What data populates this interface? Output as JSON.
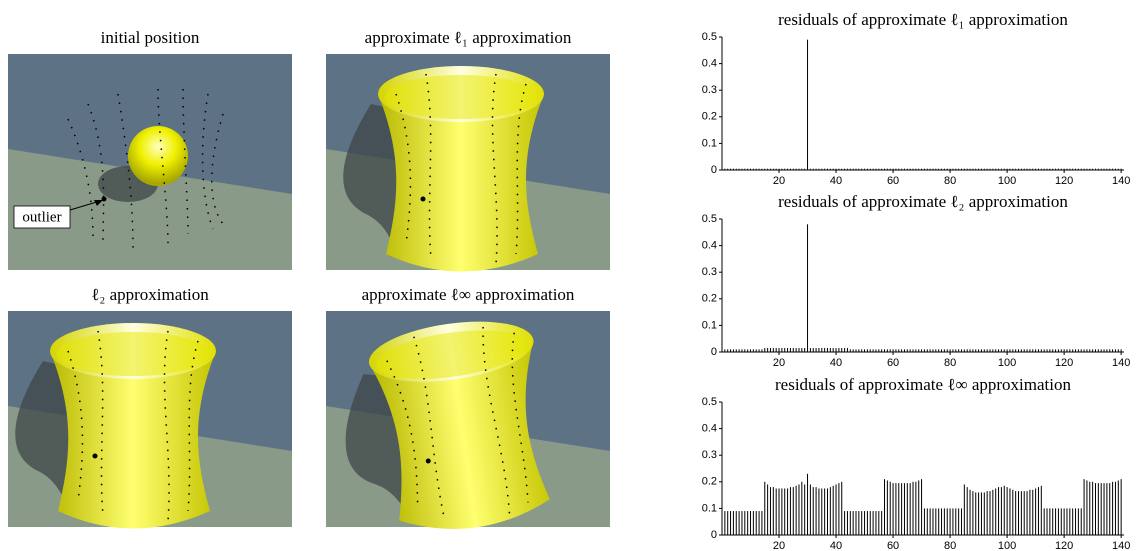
{
  "panels": [
    {
      "title": "initial position",
      "annotation": "outlier"
    },
    {
      "title": "approximate ℓ₁ approximation"
    },
    {
      "title": "ℓ₂ approximation"
    },
    {
      "title": "approximate ℓ∞ approximation"
    }
  ],
  "chart_data": [
    {
      "type": "bar",
      "title": "residuals of approximate ℓ₁ approximation",
      "color": "#000000",
      "xlim": [
        0,
        141
      ],
      "ylim": [
        0,
        0.5
      ],
      "xticks": [
        20,
        40,
        60,
        80,
        100,
        120,
        140
      ],
      "yticks": [
        0,
        0.1,
        0.2,
        0.3,
        0.4,
        0.5
      ],
      "x": [
        1,
        2,
        3,
        4,
        5,
        6,
        7,
        8,
        9,
        10,
        11,
        12,
        13,
        14,
        15,
        16,
        17,
        18,
        19,
        20,
        21,
        22,
        23,
        24,
        25,
        26,
        27,
        28,
        29,
        30,
        31,
        32,
        33,
        34,
        35,
        36,
        37,
        38,
        39,
        40,
        41,
        42,
        43,
        44,
        45,
        46,
        47,
        48,
        49,
        50,
        51,
        52,
        53,
        54,
        55,
        56,
        57,
        58,
        59,
        60,
        61,
        62,
        63,
        64,
        65,
        66,
        67,
        68,
        69,
        70,
        71,
        72,
        73,
        74,
        75,
        76,
        77,
        78,
        79,
        80,
        81,
        82,
        83,
        84,
        85,
        86,
        87,
        88,
        89,
        90,
        91,
        92,
        93,
        94,
        95,
        96,
        97,
        98,
        99,
        100,
        101,
        102,
        103,
        104,
        105,
        106,
        107,
        108,
        109,
        110,
        111,
        112,
        113,
        114,
        115,
        116,
        117,
        118,
        119,
        120,
        121,
        122,
        123,
        124,
        125,
        126,
        127,
        128,
        129,
        130,
        131,
        132,
        133,
        134,
        135,
        136,
        137,
        138,
        139,
        140
      ],
      "values": [
        0.005,
        0.005,
        0.005,
        0.005,
        0.005,
        0.005,
        0.005,
        0.005,
        0.005,
        0.005,
        0.005,
        0.005,
        0.005,
        0.005,
        0.005,
        0.005,
        0.005,
        0.005,
        0.005,
        0.005,
        0.005,
        0.005,
        0.005,
        0.005,
        0.005,
        0.005,
        0.005,
        0.005,
        0.005,
        0.49,
        0.005,
        0.005,
        0.005,
        0.005,
        0.005,
        0.005,
        0.005,
        0.005,
        0.005,
        0.005,
        0.005,
        0.005,
        0.005,
        0.005,
        0.005,
        0.005,
        0.005,
        0.005,
        0.005,
        0.005,
        0.005,
        0.005,
        0.005,
        0.005,
        0.005,
        0.005,
        0.005,
        0.005,
        0.005,
        0.005,
        0.005,
        0.005,
        0.005,
        0.005,
        0.005,
        0.005,
        0.005,
        0.005,
        0.005,
        0.005,
        0.005,
        0.005,
        0.005,
        0.005,
        0.005,
        0.005,
        0.005,
        0.005,
        0.005,
        0.005,
        0.005,
        0.005,
        0.005,
        0.005,
        0.005,
        0.005,
        0.005,
        0.005,
        0.005,
        0.005,
        0.005,
        0.005,
        0.005,
        0.005,
        0.005,
        0.005,
        0.005,
        0.005,
        0.005,
        0.005,
        0.005,
        0.005,
        0.005,
        0.005,
        0.005,
        0.005,
        0.005,
        0.005,
        0.005,
        0.005,
        0.005,
        0.005,
        0.005,
        0.005,
        0.005,
        0.005,
        0.005,
        0.005,
        0.005,
        0.005,
        0.005,
        0.005,
        0.005,
        0.005,
        0.005,
        0.005,
        0.005,
        0.005,
        0.005,
        0.005,
        0.005,
        0.005,
        0.005,
        0.005,
        0.005,
        0.005,
        0.005,
        0.005,
        0.005,
        0.005
      ]
    },
    {
      "type": "bar",
      "title": "residuals of approximate ℓ₂ approximation",
      "color": "#000000",
      "xlim": [
        0,
        141
      ],
      "ylim": [
        0,
        0.5
      ],
      "xticks": [
        20,
        40,
        60,
        80,
        100,
        120,
        140
      ],
      "yticks": [
        0,
        0.1,
        0.2,
        0.3,
        0.4,
        0.5
      ],
      "x": [
        1,
        2,
        3,
        4,
        5,
        6,
        7,
        8,
        9,
        10,
        11,
        12,
        13,
        14,
        15,
        16,
        17,
        18,
        19,
        20,
        21,
        22,
        23,
        24,
        25,
        26,
        27,
        28,
        29,
        30,
        31,
        32,
        33,
        34,
        35,
        36,
        37,
        38,
        39,
        40,
        41,
        42,
        43,
        44,
        45,
        46,
        47,
        48,
        49,
        50,
        51,
        52,
        53,
        54,
        55,
        56,
        57,
        58,
        59,
        60,
        61,
        62,
        63,
        64,
        65,
        66,
        67,
        68,
        69,
        70,
        71,
        72,
        73,
        74,
        75,
        76,
        77,
        78,
        79,
        80,
        81,
        82,
        83,
        84,
        85,
        86,
        87,
        88,
        89,
        90,
        91,
        92,
        93,
        94,
        95,
        96,
        97,
        98,
        99,
        100,
        101,
        102,
        103,
        104,
        105,
        106,
        107,
        108,
        109,
        110,
        111,
        112,
        113,
        114,
        115,
        116,
        117,
        118,
        119,
        120,
        121,
        122,
        123,
        124,
        125,
        126,
        127,
        128,
        129,
        130,
        131,
        132,
        133,
        134,
        135,
        136,
        137,
        138,
        139,
        140
      ],
      "values": [
        0.01,
        0.01,
        0.01,
        0.01,
        0.01,
        0.01,
        0.01,
        0.01,
        0.01,
        0.01,
        0.01,
        0.01,
        0.01,
        0.01,
        0.015,
        0.015,
        0.015,
        0.015,
        0.015,
        0.015,
        0.015,
        0.015,
        0.015,
        0.015,
        0.015,
        0.015,
        0.015,
        0.015,
        0.015,
        0.48,
        0.015,
        0.015,
        0.015,
        0.015,
        0.015,
        0.015,
        0.015,
        0.015,
        0.015,
        0.015,
        0.015,
        0.015,
        0.015,
        0.015,
        0.01,
        0.01,
        0.01,
        0.01,
        0.01,
        0.01,
        0.01,
        0.01,
        0.01,
        0.01,
        0.01,
        0.01,
        0.01,
        0.01,
        0.01,
        0.01,
        0.01,
        0.01,
        0.01,
        0.01,
        0.01,
        0.01,
        0.01,
        0.01,
        0.01,
        0.01,
        0.01,
        0.01,
        0.01,
        0.01,
        0.01,
        0.01,
        0.01,
        0.01,
        0.01,
        0.01,
        0.01,
        0.01,
        0.01,
        0.01,
        0.01,
        0.01,
        0.01,
        0.01,
        0.01,
        0.01,
        0.01,
        0.01,
        0.01,
        0.01,
        0.01,
        0.01,
        0.01,
        0.01,
        0.01,
        0.01,
        0.01,
        0.01,
        0.01,
        0.01,
        0.01,
        0.01,
        0.01,
        0.01,
        0.01,
        0.01,
        0.01,
        0.01,
        0.01,
        0.01,
        0.01,
        0.01,
        0.01,
        0.01,
        0.01,
        0.01,
        0.01,
        0.01,
        0.01,
        0.01,
        0.01,
        0.01,
        0.01,
        0.01,
        0.01,
        0.01,
        0.01,
        0.01,
        0.01,
        0.01,
        0.01,
        0.01,
        0.01,
        0.01,
        0.01,
        0.01
      ]
    },
    {
      "type": "bar",
      "title": "residuals of approximate ℓ∞ approximation",
      "color": "#000000",
      "xlim": [
        0,
        141
      ],
      "ylim": [
        0,
        0.5
      ],
      "xticks": [
        20,
        40,
        60,
        80,
        100,
        120,
        140
      ],
      "yticks": [
        0,
        0.1,
        0.2,
        0.3,
        0.4,
        0.5
      ],
      "x": [
        1,
        2,
        3,
        4,
        5,
        6,
        7,
        8,
        9,
        10,
        11,
        12,
        13,
        14,
        15,
        16,
        17,
        18,
        19,
        20,
        21,
        22,
        23,
        24,
        25,
        26,
        27,
        28,
        29,
        30,
        31,
        32,
        33,
        34,
        35,
        36,
        37,
        38,
        39,
        40,
        41,
        42,
        43,
        44,
        45,
        46,
        47,
        48,
        49,
        50,
        51,
        52,
        53,
        54,
        55,
        56,
        57,
        58,
        59,
        60,
        61,
        62,
        63,
        64,
        65,
        66,
        67,
        68,
        69,
        70,
        71,
        72,
        73,
        74,
        75,
        76,
        77,
        78,
        79,
        80,
        81,
        82,
        83,
        84,
        85,
        86,
        87,
        88,
        89,
        90,
        91,
        92,
        93,
        94,
        95,
        96,
        97,
        98,
        99,
        100,
        101,
        102,
        103,
        104,
        105,
        106,
        107,
        108,
        109,
        110,
        111,
        112,
        113,
        114,
        115,
        116,
        117,
        118,
        119,
        120,
        121,
        122,
        123,
        124,
        125,
        126,
        127,
        128,
        129,
        130,
        131,
        132,
        133,
        134,
        135,
        136,
        137,
        138,
        139,
        140
      ],
      "values": [
        0.09,
        0.09,
        0.09,
        0.09,
        0.09,
        0.09,
        0.09,
        0.09,
        0.09,
        0.09,
        0.09,
        0.09,
        0.09,
        0.09,
        0.2,
        0.19,
        0.18,
        0.18,
        0.175,
        0.175,
        0.175,
        0.175,
        0.175,
        0.18,
        0.18,
        0.185,
        0.19,
        0.2,
        0.19,
        0.23,
        0.19,
        0.18,
        0.18,
        0.175,
        0.175,
        0.175,
        0.175,
        0.18,
        0.185,
        0.19,
        0.195,
        0.2,
        0.09,
        0.09,
        0.09,
        0.09,
        0.09,
        0.09,
        0.09,
        0.09,
        0.09,
        0.09,
        0.09,
        0.09,
        0.09,
        0.09,
        0.21,
        0.205,
        0.2,
        0.195,
        0.195,
        0.195,
        0.195,
        0.195,
        0.195,
        0.195,
        0.2,
        0.2,
        0.205,
        0.21,
        0.1,
        0.1,
        0.1,
        0.1,
        0.1,
        0.1,
        0.1,
        0.1,
        0.1,
        0.1,
        0.1,
        0.1,
        0.1,
        0.1,
        0.19,
        0.18,
        0.17,
        0.165,
        0.16,
        0.16,
        0.16,
        0.16,
        0.165,
        0.165,
        0.17,
        0.175,
        0.18,
        0.18,
        0.185,
        0.18,
        0.175,
        0.17,
        0.165,
        0.165,
        0.165,
        0.165,
        0.165,
        0.17,
        0.17,
        0.175,
        0.18,
        0.185,
        0.1,
        0.1,
        0.1,
        0.1,
        0.1,
        0.1,
        0.1,
        0.1,
        0.1,
        0.1,
        0.1,
        0.1,
        0.1,
        0.1,
        0.21,
        0.205,
        0.2,
        0.2,
        0.195,
        0.195,
        0.195,
        0.195,
        0.195,
        0.195,
        0.2,
        0.2,
        0.205,
        0.21
      ]
    }
  ]
}
